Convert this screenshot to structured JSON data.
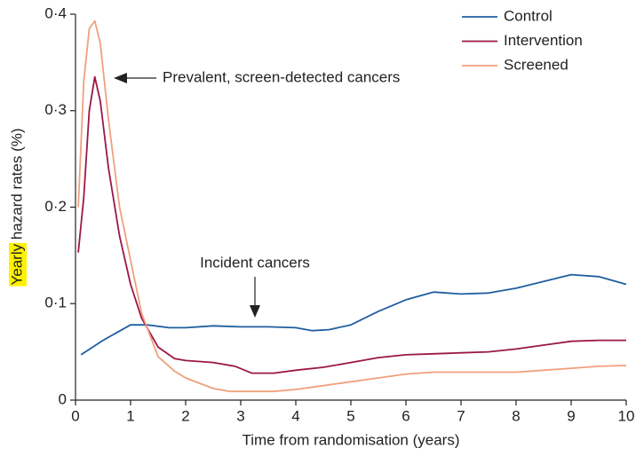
{
  "chart_data": {
    "type": "line",
    "ylabel": "Yearly hazard rates (%)",
    "xlabel": "Time from randomisation (years)",
    "annotations": [
      "Prevalent, screen-detected cancers",
      "Incident cancers"
    ],
    "xlim": [
      0,
      10
    ],
    "xticks": [
      0,
      1,
      2,
      3,
      4,
      5,
      6,
      7,
      8,
      9,
      10
    ],
    "ylim": [
      0,
      0.4
    ],
    "yticks": [
      0,
      {
        "value": 0.1,
        "label": "0·1"
      },
      {
        "value": 0.2,
        "label": "0·2"
      },
      {
        "value": 0.3,
        "label": "0·3"
      },
      {
        "value": 0.4,
        "label": "0·4"
      }
    ],
    "legend": "upper right",
    "series": [
      {
        "name": "Control",
        "color": "#1f5fa0",
        "x": [
          0.1,
          0.5,
          1,
          1.3,
          1.7,
          2,
          2.5,
          3,
          3.5,
          4,
          4.3,
          4.6,
          5,
          5.5,
          6,
          6.5,
          7,
          7.5,
          8,
          8.5,
          9,
          9.5,
          10
        ],
        "values": [
          0.047,
          0.062,
          0.078,
          0.078,
          0.075,
          0.075,
          0.077,
          0.076,
          0.076,
          0.075,
          0.072,
          0.073,
          0.078,
          0.092,
          0.104,
          0.112,
          0.11,
          0.111,
          0.116,
          0.123,
          0.13,
          0.128,
          0.12
        ]
      },
      {
        "name": "Intervention",
        "color": "#9b1748",
        "x": [
          0.05,
          0.15,
          0.25,
          0.35,
          0.45,
          0.6,
          0.8,
          1,
          1.2,
          1.5,
          1.8,
          2,
          2.5,
          2.9,
          3.2,
          3.6,
          4,
          4.5,
          5,
          5.5,
          6,
          6.5,
          7,
          7.5,
          8,
          8.5,
          9,
          9.5,
          10
        ],
        "values": [
          0.153,
          0.21,
          0.3,
          0.335,
          0.31,
          0.24,
          0.17,
          0.12,
          0.085,
          0.055,
          0.043,
          0.041,
          0.039,
          0.035,
          0.028,
          0.028,
          0.031,
          0.034,
          0.039,
          0.044,
          0.047,
          0.048,
          0.049,
          0.05,
          0.053,
          0.057,
          0.061,
          0.062,
          0.062
        ]
      },
      {
        "name": "Screened",
        "color": "#f0a07d",
        "x": [
          0.05,
          0.15,
          0.25,
          0.35,
          0.45,
          0.6,
          0.8,
          1,
          1.2,
          1.5,
          1.8,
          2,
          2.5,
          2.8,
          3.2,
          3.6,
          4,
          4.5,
          5,
          5.5,
          6,
          6.5,
          7,
          7.5,
          8,
          8.5,
          9,
          9.5,
          10
        ],
        "values": [
          0.2,
          0.33,
          0.385,
          0.393,
          0.37,
          0.29,
          0.2,
          0.145,
          0.09,
          0.045,
          0.03,
          0.023,
          0.012,
          0.009,
          0.009,
          0.009,
          0.011,
          0.015,
          0.019,
          0.023,
          0.027,
          0.029,
          0.029,
          0.029,
          0.029,
          0.031,
          0.033,
          0.035,
          0.036
        ]
      }
    ]
  }
}
